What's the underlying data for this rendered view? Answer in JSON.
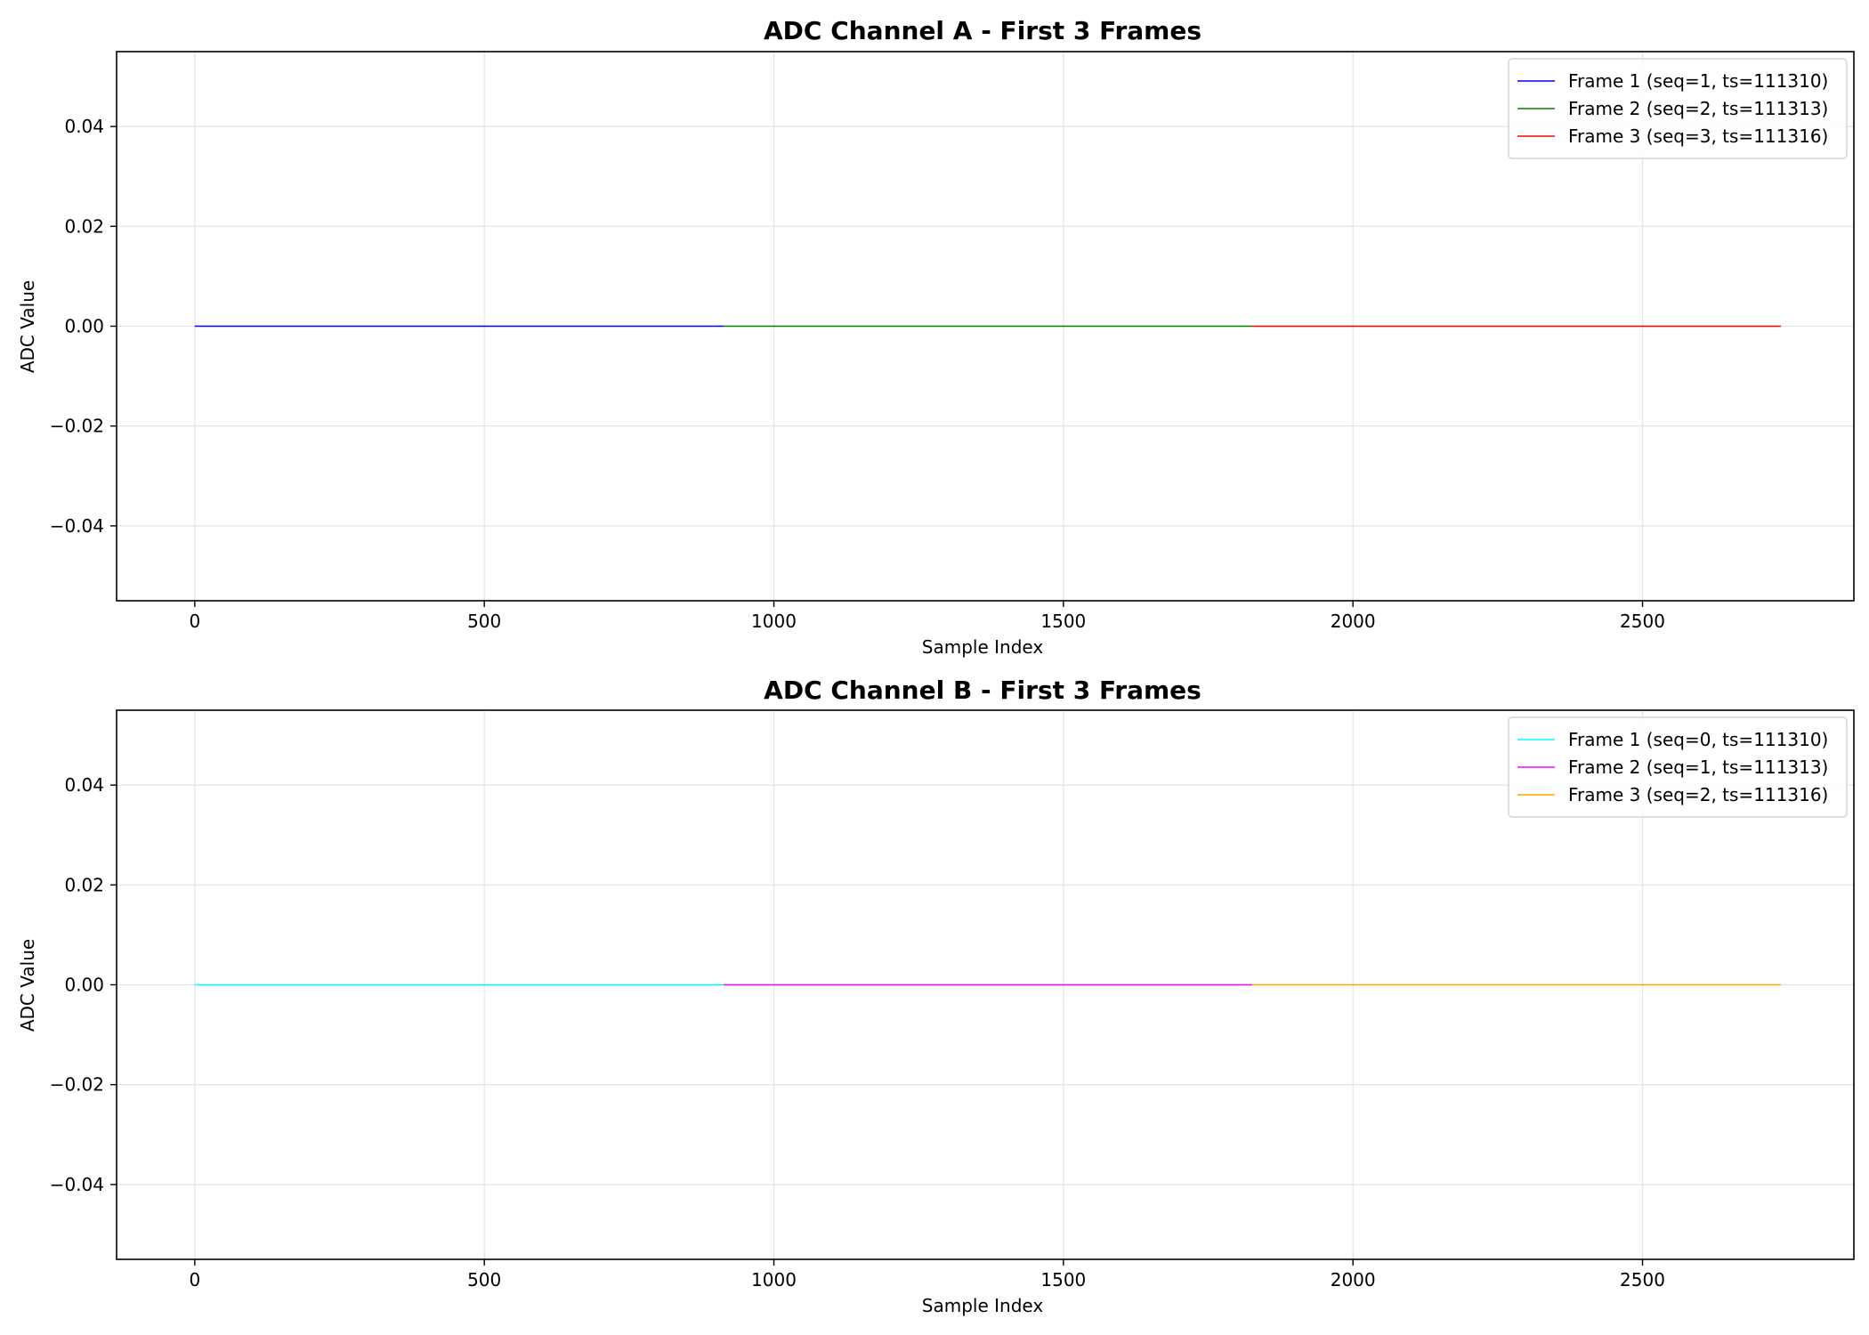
{
  "chart_data": [
    {
      "type": "line",
      "title": "ADC Channel A - First 3 Frames",
      "xlabel": "Sample Index",
      "ylabel": "ADC Value",
      "xlim": [
        -135,
        2865
      ],
      "ylim": [
        -0.055,
        0.055
      ],
      "xticks": [
        0,
        500,
        1000,
        1500,
        2000,
        2500
      ],
      "yticks": [
        0.04,
        0.02,
        0.0,
        -0.02,
        -0.04
      ],
      "xtick_labels": [
        "0",
        "500",
        "1000",
        "1500",
        "2000",
        "2500"
      ],
      "ytick_labels": [
        "0.04",
        "0.02",
        "0.00",
        "−0.02",
        "−0.04"
      ],
      "grid": true,
      "legend_position": "top-right",
      "series": [
        {
          "name": "Frame 1 (seq=1, ts=111310)",
          "color": "#0000ff",
          "x": [
            0,
            913
          ],
          "y": [
            0.0,
            0.0
          ]
        },
        {
          "name": "Frame 2 (seq=2, ts=111313)",
          "color": "#008000",
          "x": [
            913,
            1826
          ],
          "y": [
            0.0,
            0.0
          ]
        },
        {
          "name": "Frame 3 (seq=3, ts=111316)",
          "color": "#ff0000",
          "x": [
            1826,
            2739
          ],
          "y": [
            0.0,
            0.0
          ]
        }
      ]
    },
    {
      "type": "line",
      "title": "ADC Channel B - First 3 Frames",
      "xlabel": "Sample Index",
      "ylabel": "ADC Value",
      "xlim": [
        -135,
        2865
      ],
      "ylim": [
        -0.055,
        0.055
      ],
      "xticks": [
        0,
        500,
        1000,
        1500,
        2000,
        2500
      ],
      "yticks": [
        0.04,
        0.02,
        0.0,
        -0.02,
        -0.04
      ],
      "xtick_labels": [
        "0",
        "500",
        "1000",
        "1500",
        "2000",
        "2500"
      ],
      "ytick_labels": [
        "0.04",
        "0.02",
        "0.00",
        "−0.02",
        "−0.04"
      ],
      "grid": true,
      "legend_position": "top-right",
      "series": [
        {
          "name": "Frame 1 (seq=0, ts=111310)",
          "color": "#00ffff",
          "x": [
            0,
            913
          ],
          "y": [
            0.0,
            0.0
          ]
        },
        {
          "name": "Frame 2 (seq=1, ts=111313)",
          "color": "#ff00ff",
          "x": [
            913,
            1826
          ],
          "y": [
            0.0,
            0.0
          ]
        },
        {
          "name": "Frame 3 (seq=2, ts=111316)",
          "color": "#ffa500",
          "x": [
            1826,
            2739
          ],
          "y": [
            0.0,
            0.0
          ]
        }
      ]
    }
  ]
}
